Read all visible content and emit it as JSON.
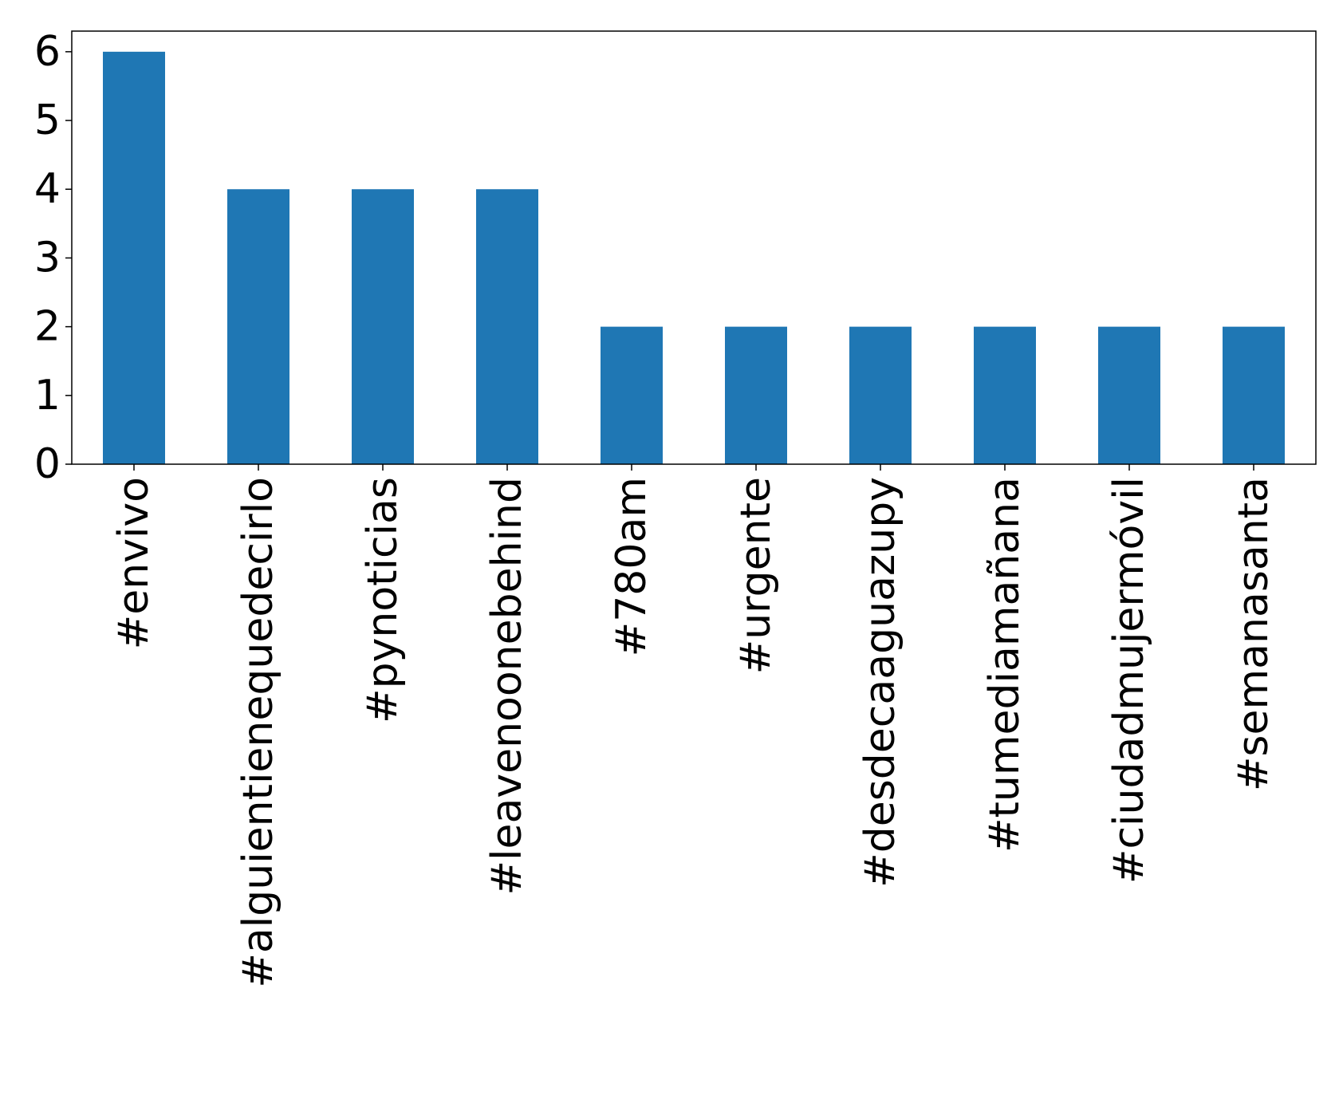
{
  "chart_data": {
    "type": "bar",
    "title": "",
    "xlabel": "",
    "ylabel": "",
    "categories": [
      "#envivo",
      "#alguientienequedecirlo",
      "#pynoticias",
      "#leavenoonebehind",
      "#780am",
      "#urgente",
      "#desdecaaguazupy",
      "#tumediamañana",
      "#ciudadmujermóvil",
      "#semanasanta"
    ],
    "values": [
      6,
      4,
      4,
      4,
      2,
      2,
      2,
      2,
      2,
      2
    ],
    "ylim": [
      0,
      6.3
    ],
    "yticks": [
      0,
      1,
      2,
      3,
      4,
      5,
      6
    ],
    "grid": false,
    "legend": "none",
    "bar_color": "#1f77b4",
    "x_tick_rotation": "vertical"
  }
}
